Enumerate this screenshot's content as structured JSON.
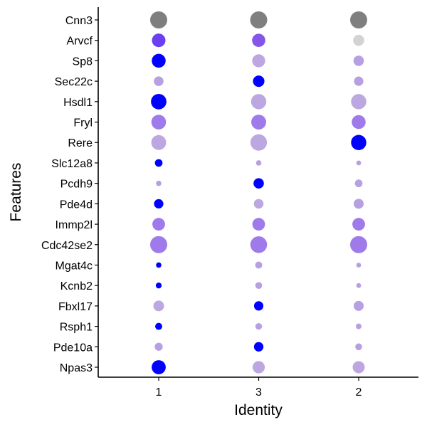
{
  "chart_data": {
    "type": "dotplot",
    "xlabel": "Identity",
    "ylabel": "Features",
    "x_categories": [
      "1",
      "3",
      "2"
    ],
    "y_categories": [
      "Cnn3",
      "Arvcf",
      "Sp8",
      "Sec22c",
      "Hsdl1",
      "Fryl",
      "Rere",
      "Slc12a8",
      "Pcdh9",
      "Pde4d",
      "Immp2l",
      "Cdc42se2",
      "Mgat4c",
      "Kcnb2",
      "Fbxl17",
      "Rsph1",
      "Pde10a",
      "Npas3"
    ],
    "size_encoding": "relative dot size (0-1)",
    "color_encoding": "relative expression (0 = light grey, 1 = blue)",
    "colors": {
      "low": "#d3d3d3",
      "high": "#0000ff"
    },
    "points": [
      {
        "gene": "Cnn3",
        "identity": "1",
        "size": 1.0,
        "color": "#7f7f7f"
      },
      {
        "gene": "Cnn3",
        "identity": "3",
        "size": 1.0,
        "color": "#7f7f7f"
      },
      {
        "gene": "Cnn3",
        "identity": "2",
        "size": 1.0,
        "color": "#7f7f7f"
      },
      {
        "gene": "Arvcf",
        "identity": "1",
        "size": 0.63,
        "color": "#6a40f0"
      },
      {
        "gene": "Arvcf",
        "identity": "3",
        "size": 0.6,
        "color": "#8455e8"
      },
      {
        "gene": "Arvcf",
        "identity": "2",
        "size": 0.42,
        "color": "#d3d3d3"
      },
      {
        "gene": "Sp8",
        "identity": "1",
        "size": 0.66,
        "color": "#0000ff"
      },
      {
        "gene": "Sp8",
        "identity": "3",
        "size": 0.58,
        "color": "#bca7e0"
      },
      {
        "gene": "Sp8",
        "identity": "2",
        "size": 0.37,
        "color": "#b7a0e2"
      },
      {
        "gene": "Sec22c",
        "identity": "1",
        "size": 0.32,
        "color": "#b7a0e2"
      },
      {
        "gene": "Sec22c",
        "identity": "3",
        "size": 0.45,
        "color": "#0000ff"
      },
      {
        "gene": "Sec22c",
        "identity": "2",
        "size": 0.3,
        "color": "#b7a0e2"
      },
      {
        "gene": "Hsdl1",
        "identity": "1",
        "size": 0.82,
        "color": "#0000ff"
      },
      {
        "gene": "Hsdl1",
        "identity": "3",
        "size": 0.8,
        "color": "#bca7e0"
      },
      {
        "gene": "Hsdl1",
        "identity": "2",
        "size": 0.8,
        "color": "#bca7e0"
      },
      {
        "gene": "Fryl",
        "identity": "1",
        "size": 0.74,
        "color": "#9f7aea"
      },
      {
        "gene": "Fryl",
        "identity": "3",
        "size": 0.76,
        "color": "#9f7aea"
      },
      {
        "gene": "Fryl",
        "identity": "2",
        "size": 0.66,
        "color": "#9f7aea"
      },
      {
        "gene": "Rere",
        "identity": "1",
        "size": 0.76,
        "color": "#bca7e0"
      },
      {
        "gene": "Rere",
        "identity": "3",
        "size": 0.93,
        "color": "#bca7e0"
      },
      {
        "gene": "Rere",
        "identity": "2",
        "size": 0.8,
        "color": "#0000ff"
      },
      {
        "gene": "Slc12a8",
        "identity": "1",
        "size": 0.2,
        "color": "#0000ff"
      },
      {
        "gene": "Slc12a8",
        "identity": "3",
        "size": 0.1,
        "color": "#b7a0e2"
      },
      {
        "gene": "Slc12a8",
        "identity": "2",
        "size": 0.08,
        "color": "#b7a0e2"
      },
      {
        "gene": "Pcdh9",
        "identity": "1",
        "size": 0.1,
        "color": "#b7a0e2"
      },
      {
        "gene": "Pcdh9",
        "identity": "3",
        "size": 0.37,
        "color": "#0000ff"
      },
      {
        "gene": "Pcdh9",
        "identity": "2",
        "size": 0.2,
        "color": "#b7a0e2"
      },
      {
        "gene": "Pde4d",
        "identity": "1",
        "size": 0.3,
        "color": "#0000ff"
      },
      {
        "gene": "Pde4d",
        "identity": "3",
        "size": 0.32,
        "color": "#bca7e0"
      },
      {
        "gene": "Pde4d",
        "identity": "2",
        "size": 0.34,
        "color": "#b7a0e2"
      },
      {
        "gene": "Immp2l",
        "identity": "1",
        "size": 0.55,
        "color": "#9f7aea"
      },
      {
        "gene": "Immp2l",
        "identity": "3",
        "size": 0.55,
        "color": "#9f7aea"
      },
      {
        "gene": "Immp2l",
        "identity": "2",
        "size": 0.55,
        "color": "#9f7aea"
      },
      {
        "gene": "Cdc42se2",
        "identity": "1",
        "size": 1.0,
        "color": "#9f7aea"
      },
      {
        "gene": "Cdc42se2",
        "identity": "3",
        "size": 0.96,
        "color": "#9f7aea"
      },
      {
        "gene": "Cdc42se2",
        "identity": "2",
        "size": 1.0,
        "color": "#9f7aea"
      },
      {
        "gene": "Mgat4c",
        "identity": "1",
        "size": 0.1,
        "color": "#0000ff"
      },
      {
        "gene": "Mgat4c",
        "identity": "3",
        "size": 0.17,
        "color": "#b7a0e2"
      },
      {
        "gene": "Mgat4c",
        "identity": "2",
        "size": 0.08,
        "color": "#b7a0e2"
      },
      {
        "gene": "Kcnb2",
        "identity": "1",
        "size": 0.12,
        "color": "#0000ff"
      },
      {
        "gene": "Kcnb2",
        "identity": "3",
        "size": 0.16,
        "color": "#b7a0e2"
      },
      {
        "gene": "Kcnb2",
        "identity": "2",
        "size": 0.08,
        "color": "#b7a0e2"
      },
      {
        "gene": "Fbxl17",
        "identity": "1",
        "size": 0.39,
        "color": "#bca7e0"
      },
      {
        "gene": "Fbxl17",
        "identity": "3",
        "size": 0.3,
        "color": "#0000ff"
      },
      {
        "gene": "Fbxl17",
        "identity": "2",
        "size": 0.34,
        "color": "#b7a0e2"
      },
      {
        "gene": "Rsph1",
        "identity": "1",
        "size": 0.17,
        "color": "#0000ff"
      },
      {
        "gene": "Rsph1",
        "identity": "3",
        "size": 0.15,
        "color": "#b7a0e2"
      },
      {
        "gene": "Rsph1",
        "identity": "2",
        "size": 0.11,
        "color": "#b7a0e2"
      },
      {
        "gene": "Pde10a",
        "identity": "1",
        "size": 0.22,
        "color": "#b7a0e2"
      },
      {
        "gene": "Pde10a",
        "identity": "3",
        "size": 0.31,
        "color": "#0000ff"
      },
      {
        "gene": "Pde10a",
        "identity": "2",
        "size": 0.16,
        "color": "#b7a0e2"
      },
      {
        "gene": "Npas3",
        "identity": "1",
        "size": 0.68,
        "color": "#0000ff"
      },
      {
        "gene": "Npas3",
        "identity": "3",
        "size": 0.52,
        "color": "#bca7e0"
      },
      {
        "gene": "Npas3",
        "identity": "2",
        "size": 0.5,
        "color": "#bca7e0"
      }
    ]
  }
}
